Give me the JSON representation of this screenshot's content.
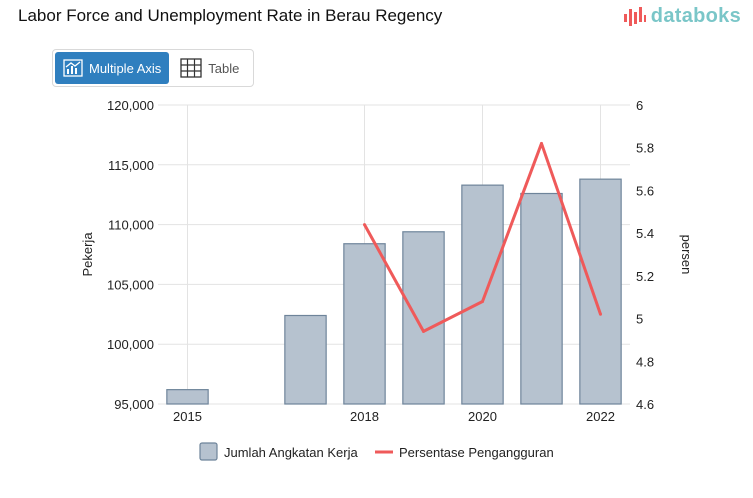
{
  "title": "Labor Force and Unemployment Rate in Berau Regency",
  "brand": {
    "name": "databoks",
    "color": "#7ac6c8",
    "icon": "bar-logo-icon"
  },
  "view_toggle": {
    "multiple_axis_label": "Multiple Axis",
    "table_label": "Table",
    "active": "multiple_axis",
    "active_color": "#2f7fbf"
  },
  "chart_data": {
    "type": "bar",
    "title": "Labor Force and Unemployment Rate in Berau Regency",
    "x": [
      2015,
      2016,
      2017,
      2018,
      2019,
      2020,
      2021,
      2022
    ],
    "xticks": [
      2015,
      2018,
      2020,
      2022
    ],
    "series": [
      {
        "name": "Jumlah Angkatan Kerja",
        "type": "bar",
        "axis": "left",
        "color": "#b6c2cf",
        "border_color": "#6e849a",
        "values": [
          96200,
          null,
          102400,
          108400,
          109400,
          113300,
          112600,
          113800
        ]
      },
      {
        "name": "Persentase Pengangguran",
        "type": "line",
        "axis": "right",
        "color": "#ef5a5a",
        "values": [
          null,
          null,
          null,
          5.44,
          4.94,
          5.08,
          5.82,
          5.02
        ]
      }
    ],
    "yleft": {
      "label": "Pekerja",
      "range": [
        95000,
        120000
      ],
      "ticks": [
        95000,
        100000,
        105000,
        110000,
        115000,
        120000
      ],
      "tick_labels": [
        "95,000",
        "100,000",
        "105,000",
        "110,000",
        "115,000",
        "120,000"
      ]
    },
    "yright": {
      "label": "persen",
      "range": [
        4.6,
        6
      ],
      "ticks": [
        4.6,
        4.8,
        5,
        5.2,
        5.4,
        5.6,
        5.8,
        6
      ],
      "tick_labels": [
        "4.6",
        "4.8",
        "5",
        "5.2",
        "5.4",
        "5.6",
        "5.8",
        "6"
      ]
    },
    "grid": true,
    "legend_position": "bottom-center"
  }
}
